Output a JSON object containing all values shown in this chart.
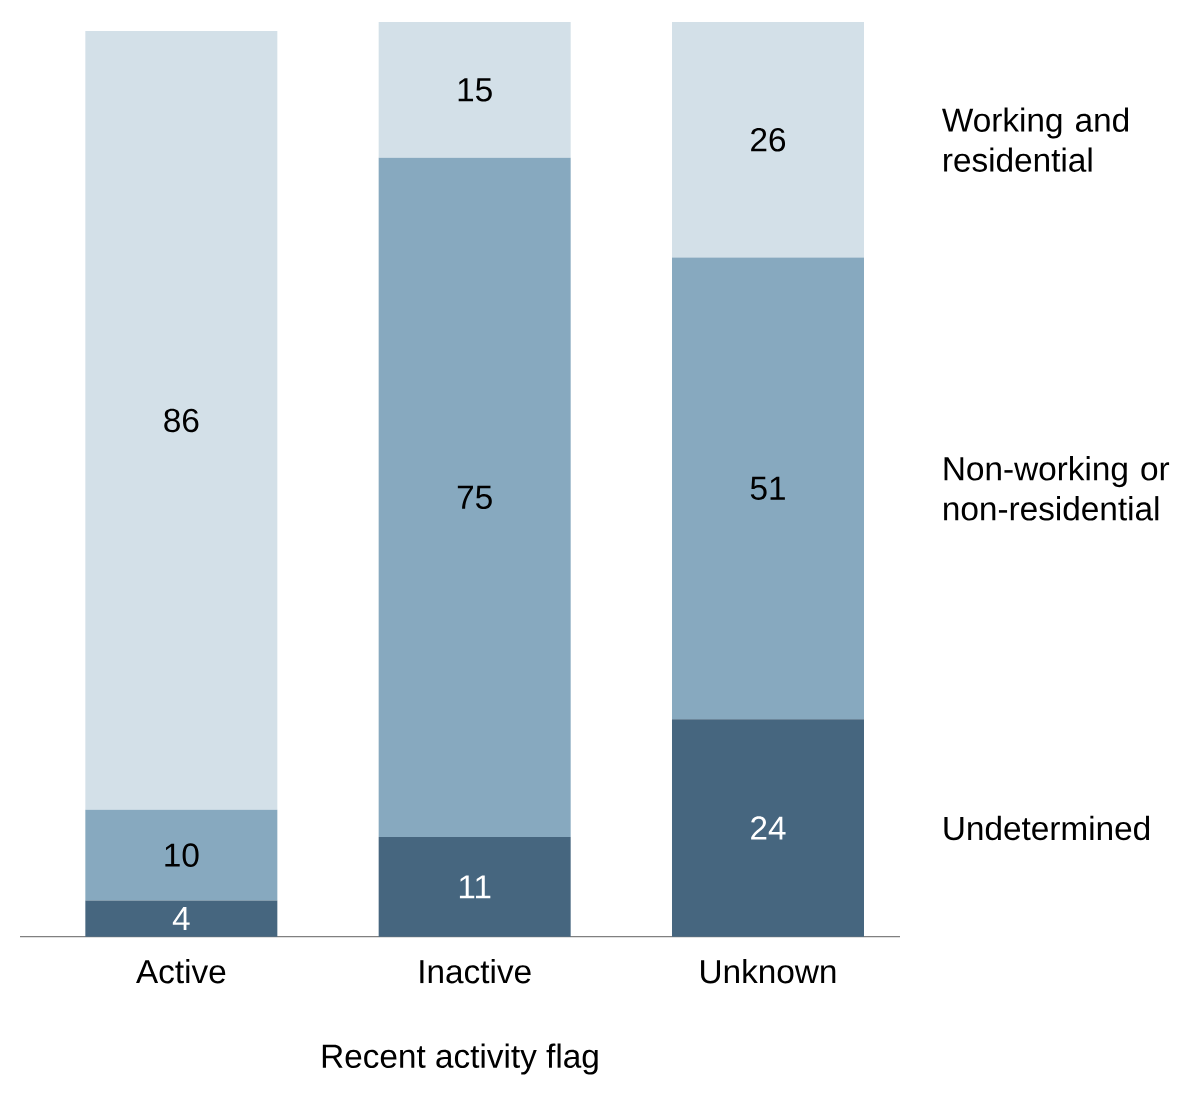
{
  "chart_data": {
    "type": "bar",
    "stacked": true,
    "xlabel": "Recent activity flag",
    "categories": [
      "Active",
      "Inactive",
      "Unknown"
    ],
    "series": [
      {
        "name": "Undetermined",
        "color": "#46667f",
        "values": [
          4,
          11,
          24
        ]
      },
      {
        "name": "Non-working or non-residential",
        "color": "#87a9bf",
        "values": [
          10,
          75,
          51
        ]
      },
      {
        "name": "Working and residential",
        "color": "#d3e0e8",
        "values": [
          86,
          15,
          26
        ]
      }
    ],
    "data_labels": true,
    "legend": "right"
  }
}
